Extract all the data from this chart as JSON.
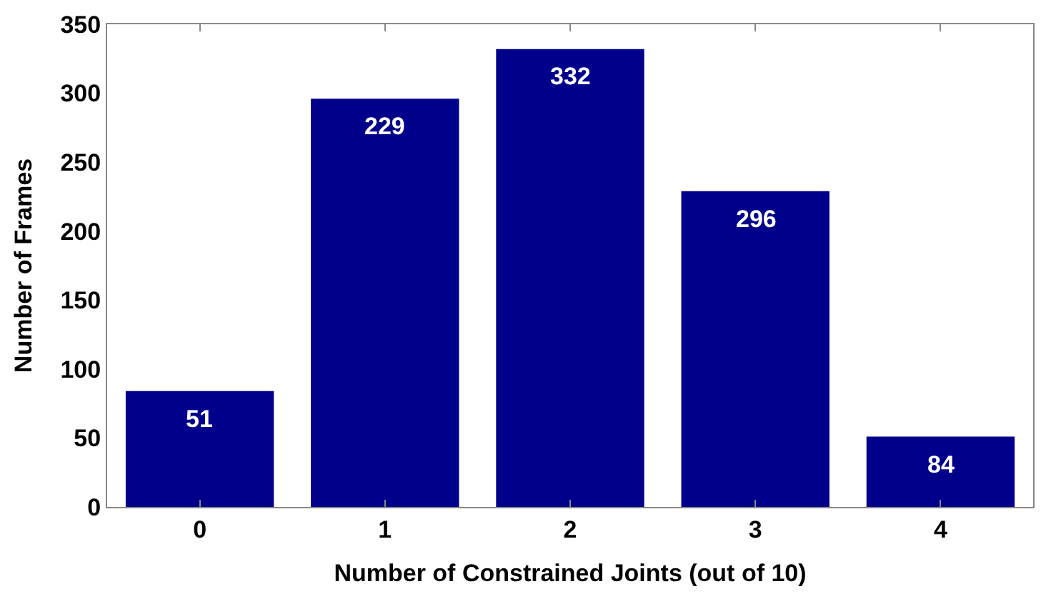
{
  "chart_data": {
    "type": "bar",
    "xlabel": "Number of Constrained Joints (out of 10)",
    "ylabel": "Number of Frames",
    "categories": [
      "0",
      "1",
      "2",
      "3",
      "4"
    ],
    "values": [
      84,
      296,
      332,
      229,
      51
    ],
    "color": "#00008b",
    "ylim": [
      0,
      350
    ],
    "yticks": [
      0,
      50,
      100,
      150,
      200,
      250,
      300,
      350
    ],
    "annotations": [
      {
        "text": "51",
        "x": "0",
        "y": 84
      },
      {
        "text": "229",
        "x": "1",
        "y": 296
      },
      {
        "text": "332",
        "x": "2",
        "y": 332
      },
      {
        "text": "296",
        "x": "3",
        "y": 229
      },
      {
        "text": "84",
        "x": "4",
        "y": 51
      }
    ]
  }
}
